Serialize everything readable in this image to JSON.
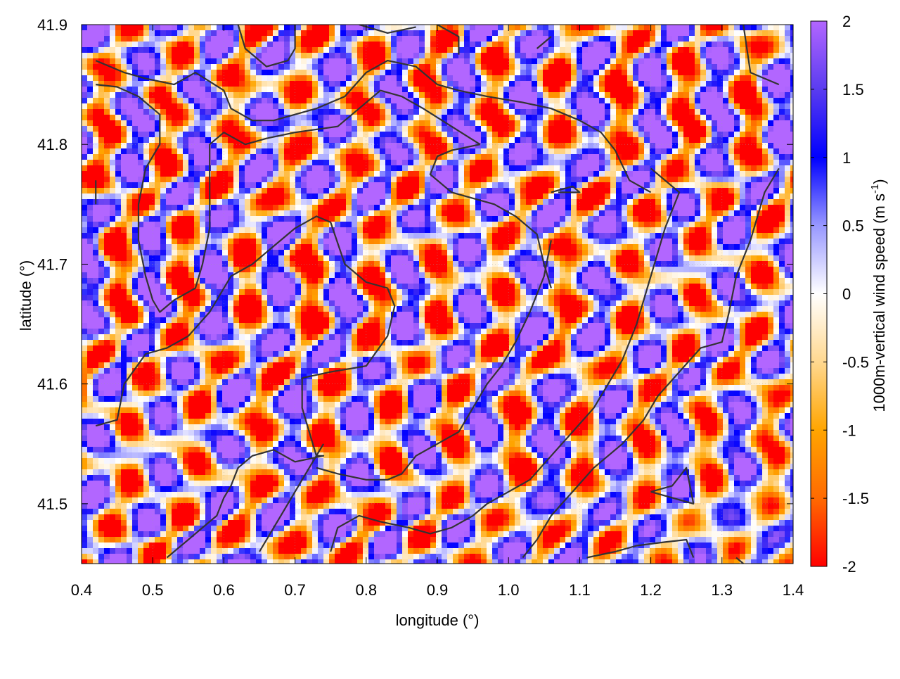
{
  "chart_data": {
    "type": "heatmap",
    "title": "",
    "xlabel": "longitude (°)",
    "ylabel": "latitude (°)",
    "xlim": [
      0.4,
      1.4
    ],
    "ylim": [
      41.45,
      41.9
    ],
    "xticks": [
      "0.4",
      "0.5",
      "0.6",
      "0.7",
      "0.8",
      "0.9",
      "1.0",
      "1.1",
      "1.2",
      "1.3",
      "1.4"
    ],
    "yticks": [
      "41.5",
      "41.6",
      "41.7",
      "41.8",
      "41.9"
    ],
    "grid": true,
    "colorbar": {
      "label_main": "1000m-vertical wind speed (m s",
      "label_sup": "-1",
      "label_close": ")",
      "range": [
        -2,
        2
      ],
      "ticks": [
        "2",
        "1.5",
        "1",
        "0.5",
        "0",
        "-0.5",
        "-1",
        "-1.5",
        "-2"
      ],
      "colors": {
        "2": "#b266ff",
        "1.5": "#5a3cf0",
        "1": "#0000ff",
        "0.5": "#9898ff",
        "0": "#ffffff",
        "-0.5": "#ffd890",
        "-1": "#ffa500",
        "-1.5": "#ff6a00",
        "-2": "#ff0000"
      }
    },
    "contours": [
      [
        [
          0.42,
          41.87
        ],
        [
          0.46,
          41.86
        ],
        [
          0.49,
          41.855
        ],
        [
          0.53,
          41.85
        ],
        [
          0.56,
          41.86
        ],
        [
          0.6,
          41.845
        ],
        [
          0.61,
          41.83
        ],
        [
          0.64,
          41.82
        ],
        [
          0.67,
          41.82
        ],
        [
          0.7,
          41.825
        ],
        [
          0.73,
          41.83
        ],
        [
          0.75,
          41.835
        ],
        [
          0.77,
          41.84
        ],
        [
          0.8,
          41.86
        ],
        [
          0.83,
          41.87
        ],
        [
          0.87,
          41.865
        ],
        [
          0.9,
          41.85
        ],
        [
          0.93,
          41.845
        ],
        [
          0.97,
          41.84
        ],
        [
          1.02,
          41.835
        ],
        [
          1.06,
          41.83
        ],
        [
          1.1,
          41.82
        ],
        [
          1.13,
          41.81
        ],
        [
          1.15,
          41.795
        ],
        [
          1.17,
          41.77
        ],
        [
          1.2,
          41.76
        ]
      ],
      [
        [
          0.42,
          41.85
        ],
        [
          0.45,
          41.848
        ],
        [
          0.48,
          41.84
        ],
        [
          0.51,
          41.825
        ],
        [
          0.51,
          41.8
        ],
        [
          0.49,
          41.78
        ],
        [
          0.48,
          41.75
        ],
        [
          0.48,
          41.72
        ],
        [
          0.49,
          41.69
        ],
        [
          0.5,
          41.67
        ],
        [
          0.51,
          41.66
        ],
        [
          0.53,
          41.67
        ],
        [
          0.56,
          41.68
        ],
        [
          0.57,
          41.7
        ],
        [
          0.58,
          41.73
        ],
        [
          0.58,
          41.77
        ],
        [
          0.58,
          41.8
        ],
        [
          0.6,
          41.81
        ],
        [
          0.63,
          41.8
        ],
        [
          0.66,
          41.805
        ],
        [
          0.7,
          41.81
        ],
        [
          0.76,
          41.815
        ],
        [
          0.79,
          41.83
        ],
        [
          0.82,
          41.845
        ],
        [
          0.85,
          41.84
        ],
        [
          0.88,
          41.83
        ],
        [
          0.92,
          41.815
        ],
        [
          0.96,
          41.8
        ]
      ],
      [
        [
          0.96,
          41.8
        ],
        [
          0.92,
          41.795
        ],
        [
          0.9,
          41.79
        ],
        [
          0.89,
          41.775
        ],
        [
          0.92,
          41.76
        ],
        [
          0.95,
          41.755
        ],
        [
          0.98,
          41.75
        ],
        [
          1.01,
          41.74
        ],
        [
          1.04,
          41.725
        ],
        [
          1.05,
          41.7
        ],
        [
          1.06,
          41.68
        ]
      ],
      [
        [
          0.42,
          41.565
        ],
        [
          0.45,
          41.57
        ],
        [
          0.46,
          41.6
        ],
        [
          0.49,
          41.625
        ],
        [
          0.52,
          41.63
        ],
        [
          0.55,
          41.64
        ],
        [
          0.58,
          41.66
        ],
        [
          0.61,
          41.69
        ],
        [
          0.64,
          41.7
        ],
        [
          0.67,
          41.715
        ],
        [
          0.7,
          41.73
        ],
        [
          0.73,
          41.74
        ],
        [
          0.75,
          41.735
        ],
        [
          0.77,
          41.7
        ],
        [
          0.8,
          41.685
        ],
        [
          0.83,
          41.68
        ],
        [
          0.84,
          41.665
        ],
        [
          0.83,
          41.64
        ],
        [
          0.8,
          41.615
        ],
        [
          0.75,
          41.61
        ],
        [
          0.71,
          41.605
        ]
      ],
      [
        [
          0.71,
          41.605
        ],
        [
          0.71,
          41.58
        ],
        [
          0.72,
          41.56
        ],
        [
          0.73,
          41.54
        ],
        [
          0.74,
          41.54
        ],
        [
          0.7,
          41.535
        ],
        [
          0.67,
          41.545
        ],
        [
          0.64,
          41.54
        ],
        [
          0.62,
          41.53
        ],
        [
          0.61,
          41.515
        ],
        [
          0.6,
          41.505
        ],
        [
          0.59,
          41.49
        ],
        [
          0.57,
          41.48
        ],
        [
          0.55,
          41.47
        ],
        [
          0.52,
          41.455
        ]
      ],
      [
        [
          0.73,
          41.53
        ],
        [
          0.76,
          41.525
        ],
        [
          0.8,
          41.52
        ],
        [
          0.83,
          41.52
        ],
        [
          0.85,
          41.525
        ],
        [
          0.87,
          41.54
        ],
        [
          0.9,
          41.55
        ],
        [
          0.93,
          41.56
        ],
        [
          0.95,
          41.58
        ],
        [
          0.97,
          41.6
        ],
        [
          0.99,
          41.615
        ],
        [
          1.01,
          41.635
        ],
        [
          1.03,
          41.66
        ],
        [
          1.05,
          41.69
        ],
        [
          1.06,
          41.72
        ]
      ],
      [
        [
          0.65,
          41.46
        ],
        [
          0.68,
          41.49
        ],
        [
          0.71,
          41.52
        ],
        [
          0.74,
          41.55
        ]
      ],
      [
        [
          0.75,
          41.46
        ],
        [
          0.76,
          41.48
        ],
        [
          0.79,
          41.49
        ],
        [
          0.82,
          41.485
        ],
        [
          0.86,
          41.48
        ],
        [
          0.89,
          41.475
        ],
        [
          0.92,
          41.48
        ],
        [
          0.95,
          41.49
        ],
        [
          0.97,
          41.5
        ],
        [
          1.0,
          41.51
        ],
        [
          1.03,
          41.52
        ],
        [
          1.06,
          41.54
        ],
        [
          1.09,
          41.56
        ],
        [
          1.12,
          41.58
        ],
        [
          1.14,
          41.6
        ],
        [
          1.16,
          41.62
        ],
        [
          1.18,
          41.65
        ],
        [
          1.2,
          41.69
        ],
        [
          1.22,
          41.73
        ],
        [
          1.24,
          41.76
        ],
        [
          1.2,
          41.78
        ]
      ],
      [
        [
          1.02,
          41.455
        ],
        [
          1.04,
          41.47
        ],
        [
          1.06,
          41.49
        ],
        [
          1.09,
          41.51
        ],
        [
          1.12,
          41.53
        ],
        [
          1.16,
          41.55
        ],
        [
          1.19,
          41.57
        ],
        [
          1.21,
          41.59
        ],
        [
          1.24,
          41.61
        ],
        [
          1.27,
          41.63
        ],
        [
          1.3,
          41.635
        ],
        [
          1.31,
          41.66
        ],
        [
          1.32,
          41.69
        ],
        [
          1.34,
          41.72
        ],
        [
          1.35,
          41.74
        ],
        [
          1.36,
          41.76
        ],
        [
          1.38,
          41.78
        ]
      ],
      [
        [
          1.11,
          41.455
        ],
        [
          1.15,
          41.46
        ],
        [
          1.18,
          41.465
        ],
        [
          1.22,
          41.468
        ],
        [
          1.25,
          41.47
        ],
        [
          1.26,
          41.455
        ]
      ],
      [
        [
          1.2,
          41.51
        ],
        [
          1.23,
          41.515
        ],
        [
          1.25,
          41.53
        ],
        [
          1.26,
          41.5
        ],
        [
          1.23,
          41.505
        ],
        [
          1.2,
          41.51
        ]
      ],
      [
        [
          1.06,
          41.76
        ],
        [
          1.09,
          41.765
        ],
        [
          1.1,
          41.76
        ],
        [
          1.07,
          41.76
        ]
      ],
      [
        [
          0.42,
          41.77
        ],
        [
          0.42,
          41.75
        ]
      ],
      [
        [
          0.62,
          41.9
        ],
        [
          0.63,
          41.88
        ],
        [
          0.66,
          41.865
        ],
        [
          0.69,
          41.87
        ],
        [
          0.7,
          41.88
        ],
        [
          0.7,
          41.9
        ]
      ],
      [
        [
          0.79,
          41.9
        ],
        [
          0.83,
          41.893
        ],
        [
          0.87,
          41.898
        ]
      ],
      [
        [
          0.9,
          41.9
        ],
        [
          0.93,
          41.89
        ],
        [
          0.93,
          41.875
        ]
      ],
      [
        [
          1.04,
          41.88
        ],
        [
          1.06,
          41.89
        ]
      ],
      [
        [
          1.33,
          41.9
        ],
        [
          1.34,
          41.86
        ],
        [
          1.38,
          41.85
        ]
      ],
      [
        [
          1.32,
          41.455
        ],
        [
          1.33,
          41.45
        ]
      ]
    ]
  }
}
